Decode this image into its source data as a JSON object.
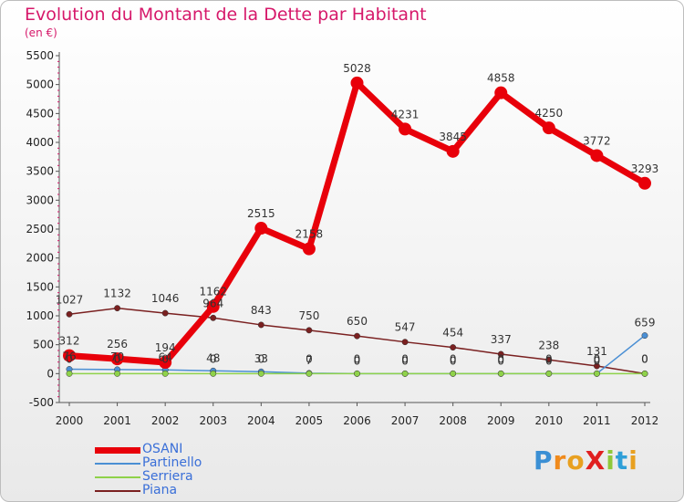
{
  "chart_data": {
    "type": "line",
    "title": "Evolution du Montant de la Dette par Habitant",
    "subtitle": "(en €)",
    "x": [
      "2000",
      "2001",
      "2002",
      "2003",
      "2004",
      "2005",
      "2006",
      "2007",
      "2008",
      "2009",
      "2010",
      "2011",
      "2012"
    ],
    "ylim": [
      -500,
      5500
    ],
    "yticks": [
      -500,
      0,
      500,
      1000,
      1500,
      2000,
      2500,
      3000,
      3500,
      4000,
      4500,
      5000,
      5500
    ],
    "grid": false,
    "legend_position": "bottom-left",
    "series": [
      {
        "name": "OSANI",
        "color": "#e8000a",
        "values": [
          312,
          256,
          194,
          1162,
          2515,
          2158,
          5028,
          4231,
          3845,
          4858,
          4250,
          3772,
          3293
        ],
        "labels": [
          "312",
          "256",
          "194",
          "1162",
          "2515",
          "2158",
          "5028",
          "4231",
          "3845",
          "4858",
          "4250",
          "3772",
          "3293"
        ]
      },
      {
        "name": "Partinello",
        "color": "#4a8fd4",
        "values": [
          76,
          70,
          64,
          48,
          33,
          7,
          0,
          0,
          0,
          0,
          0,
          0,
          659
        ],
        "labels": [
          "76",
          "70",
          "64",
          "48",
          "33",
          "7",
          "0",
          "0",
          "0",
          "0",
          "0",
          "0",
          "659"
        ]
      },
      {
        "name": "Serriera",
        "color": "#8fd24a",
        "values": [
          0,
          0,
          0,
          0,
          0,
          0,
          0,
          0,
          0,
          0,
          0,
          0,
          0
        ],
        "labels": [
          "0",
          "0",
          "0",
          "0",
          "0",
          "0",
          "0",
          "0",
          "0",
          "0",
          "0",
          "0",
          "0"
        ]
      },
      {
        "name": "Piana",
        "color": "#7a2020",
        "values": [
          1027,
          1132,
          1046,
          964,
          843,
          750,
          650,
          547,
          454,
          337,
          238,
          131,
          0
        ],
        "labels": [
          "1027",
          "1132",
          "1046",
          "964",
          "843",
          "750",
          "650",
          "547",
          "454",
          "337",
          "238",
          "131",
          "0"
        ]
      }
    ]
  },
  "logo": {
    "text": "ProXiti"
  }
}
